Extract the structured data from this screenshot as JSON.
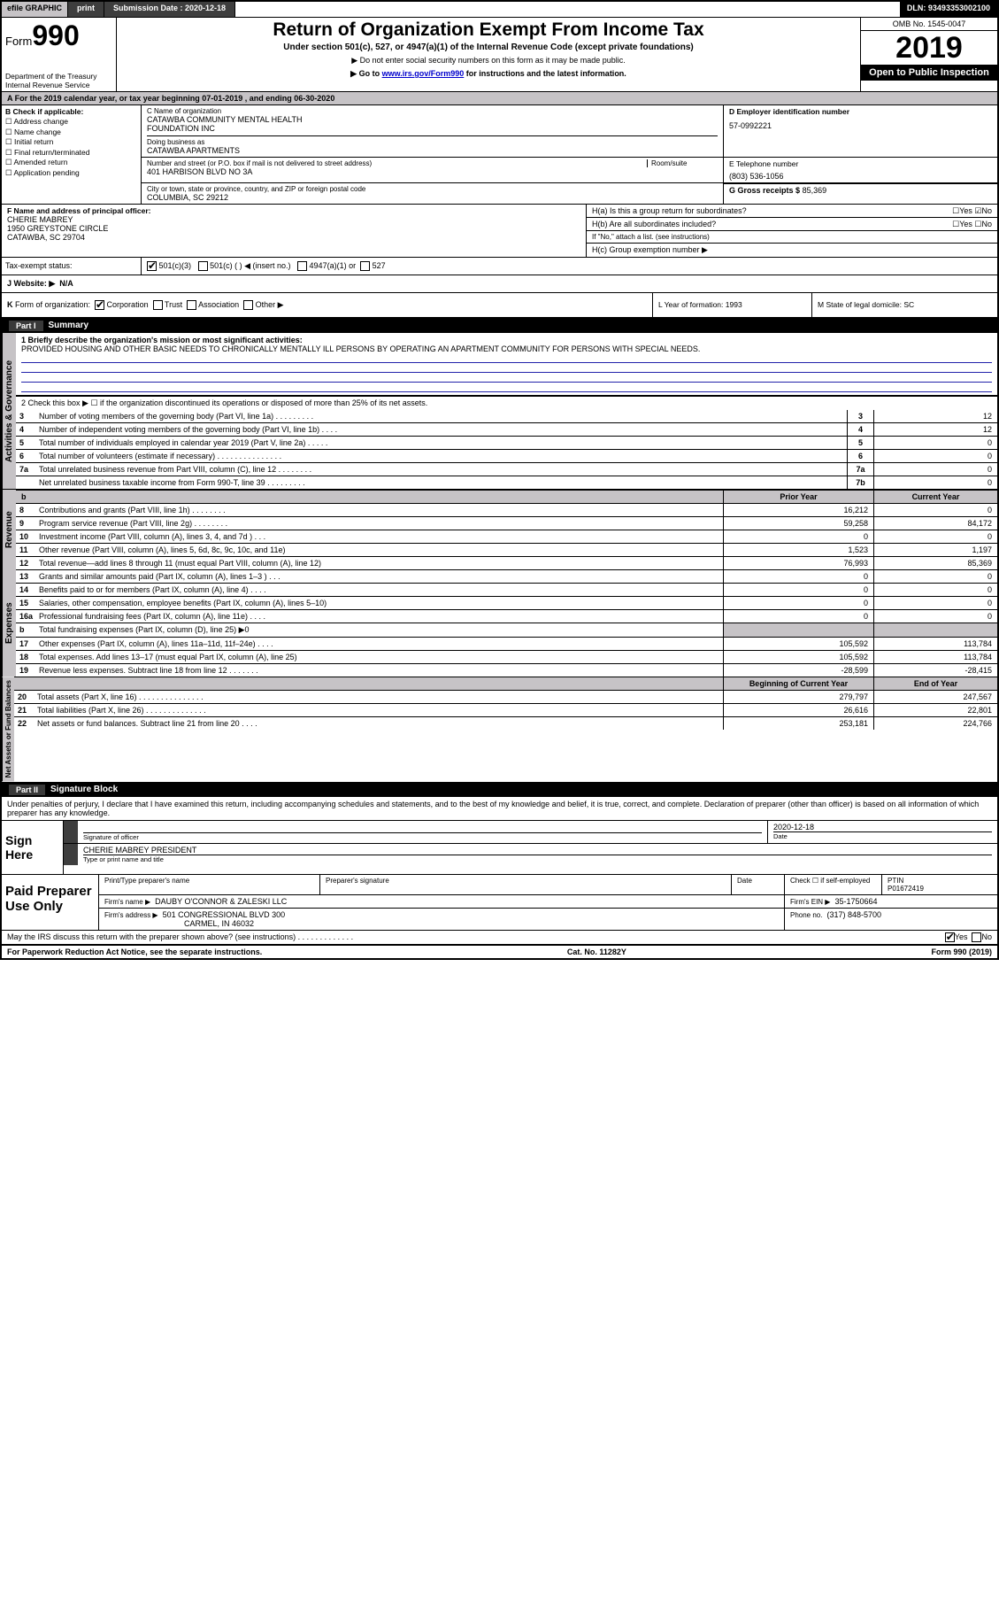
{
  "topbar": {
    "efile": "efile GRAPHIC",
    "print": "print",
    "sub_label": "Submission Date : 2020-12-18",
    "dln": "DLN: 93493353002100"
  },
  "header": {
    "form_prefix": "Form",
    "form_num": "990",
    "dept": "Department of the Treasury",
    "irs": "Internal Revenue Service",
    "title": "Return of Organization Exempt From Income Tax",
    "sub1": "Under section 501(c), 527, or 4947(a)(1) of the Internal Revenue Code (except private foundations)",
    "sub2": "▶ Do not enter social security numbers on this form as it may be made public.",
    "sub3_pre": "▶ Go to ",
    "sub3_link": "www.irs.gov/Form990",
    "sub3_post": " for instructions and the latest information.",
    "omb": "OMB No. 1545-0047",
    "year": "2019",
    "open": "Open to Public Inspection"
  },
  "period": {
    "a": "A For the 2019 calendar year, or tax year beginning 07-01-2019    , and ending 06-30-2020"
  },
  "boxB": {
    "hdr": "B Check if applicable:",
    "items": [
      "Address change",
      "Name change",
      "Initial return",
      "Final return/terminated",
      "Amended return",
      "Application pending"
    ]
  },
  "boxC": {
    "label": "C Name of organization",
    "name1": "CATAWBA COMMUNITY MENTAL HEALTH",
    "name2": "FOUNDATION INC",
    "dba_label": "Doing business as",
    "dba": "CATAWBA APARTMENTS",
    "addr_label": "Number and street (or P.O. box if mail is not delivered to street address)",
    "room_label": "Room/suite",
    "addr": "401 HARBISON BLVD NO 3A",
    "city_label": "City or town, state or province, country, and ZIP or foreign postal code",
    "city": "COLUMBIA, SC  29212"
  },
  "boxD": {
    "label": "D Employer identification number",
    "ein": "57-0992221"
  },
  "boxE": {
    "label": "E Telephone number",
    "phone": "(803) 536-1056"
  },
  "boxG": {
    "label": "G Gross receipts $",
    "val": "85,369"
  },
  "boxF": {
    "label": "F  Name and address of principal officer:",
    "l1": "CHERIE MABREY",
    "l2": "1950 GREYSTONE CIRCLE",
    "l3": "CATAWBA, SC  29704"
  },
  "boxH": {
    "ha": "H(a)  Is this a group return for subordinates?",
    "ha_yn": " Yes   No",
    "hb": "H(b)  Are all subordinates included?",
    "hb_yn": " Yes   No",
    "hb_note": "If \"No,\" attach a list. (see instructions)",
    "hc": "H(c)  Group exemption number ▶"
  },
  "taxrow": {
    "left": "Tax-exempt status:",
    "c1": "501(c)(3)",
    "c2": "501(c) (  ) ◀ (insert no.)",
    "c3": "4947(a)(1) or",
    "c4": "527"
  },
  "website": {
    "label": "J   Website: ▶",
    "val": "N/A"
  },
  "klm": {
    "k": "K Form of organization:     Corporation     Trust     Association     Other ▶",
    "l": "L Year of formation: 1993",
    "m": "M State of legal domicile: SC"
  },
  "partI": {
    "tab": "Part I",
    "title": "Summary",
    "q1_label": "1  Briefly describe the organization's mission or most significant activities:",
    "q1_text": "PROVIDED HOUSING AND OTHER BASIC NEEDS TO CHRONICALLY MENTALLY ILL PERSONS BY OPERATING AN APARTMENT COMMUNITY FOR PERSONS WITH SPECIAL NEEDS.",
    "q2": "2    Check this box ▶ ☐  if the organization discontinued its operations or disposed of more than 25% of its net assets.",
    "side_ag": "Activities & Governance",
    "side_rev": "Revenue",
    "side_exp": "Expenses",
    "side_na": "Net Assets or Fund Balances",
    "rows_top": [
      {
        "n": "3",
        "label": "Number of voting members of the governing body (Part VI, line 1a)  .  .  .  .  .  .  .  .  .",
        "box": "3",
        "val": "12"
      },
      {
        "n": "4",
        "label": "Number of independent voting members of the governing body (Part VI, line 1b)  .  .  .  .",
        "box": "4",
        "val": "12"
      },
      {
        "n": "5",
        "label": "Total number of individuals employed in calendar year 2019 (Part V, line 2a)  .  .  .  .  .",
        "box": "5",
        "val": "0"
      },
      {
        "n": "6",
        "label": "Total number of volunteers (estimate if necessary)   .  .  .  .  .  .  .  .  .  .  .  .  .  .  .",
        "box": "6",
        "val": "0"
      },
      {
        "n": "7a",
        "label": "Total unrelated business revenue from Part VIII, column (C), line 12  .  .  .  .  .  .  .  .",
        "box": "7a",
        "val": "0"
      },
      {
        "n": "",
        "label": "Net unrelated business taxable income from Form 990-T, line 39  .   .  .  .  .  .  .  .  .",
        "box": "7b",
        "val": "0"
      }
    ],
    "col_hdr_prior": "Prior Year",
    "col_hdr_curr": "Current Year",
    "rows_rev": [
      {
        "n": "8",
        "label": "Contributions and grants (Part VIII, line 1h)  .  .  .  .  .  .  .  .",
        "py": "16,212",
        "cy": "0"
      },
      {
        "n": "9",
        "label": "Program service revenue (Part VIII, line 2g)  .  .  .  .  .  .  .  .",
        "py": "59,258",
        "cy": "84,172"
      },
      {
        "n": "10",
        "label": "Investment income (Part VIII, column (A), lines 3, 4, and 7d )  .  .  .",
        "py": "0",
        "cy": "0"
      },
      {
        "n": "11",
        "label": "Other revenue (Part VIII, column (A), lines 5, 6d, 8c, 9c, 10c, and 11e)",
        "py": "1,523",
        "cy": "1,197"
      },
      {
        "n": "12",
        "label": "Total revenue—add lines 8 through 11 (must equal Part VIII, column (A), line 12)",
        "py": "76,993",
        "cy": "85,369"
      }
    ],
    "rows_exp": [
      {
        "n": "13",
        "label": "Grants and similar amounts paid (Part IX, column (A), lines 1–3 )  .  .  .",
        "py": "0",
        "cy": "0"
      },
      {
        "n": "14",
        "label": "Benefits paid to or for members (Part IX, column (A), line 4)  .  .  .  .",
        "py": "0",
        "cy": "0"
      },
      {
        "n": "15",
        "label": "Salaries, other compensation, employee benefits (Part IX, column (A), lines 5–10)",
        "py": "0",
        "cy": "0"
      },
      {
        "n": "16a",
        "label": "Professional fundraising fees (Part IX, column (A), line 11e)  .  .  .  .",
        "py": "0",
        "cy": "0"
      },
      {
        "n": "b",
        "label": "Total fundraising expenses (Part IX, column (D), line 25) ▶0",
        "py": "",
        "cy": "",
        "shade": true
      },
      {
        "n": "17",
        "label": "Other expenses (Part IX, column (A), lines 11a–11d, 11f–24e)  .  .  .  .",
        "py": "105,592",
        "cy": "113,784"
      },
      {
        "n": "18",
        "label": "Total expenses. Add lines 13–17 (must equal Part IX, column (A), line 25)",
        "py": "105,592",
        "cy": "113,784"
      },
      {
        "n": "19",
        "label": "Revenue less expenses. Subtract line 18 from line 12  .  .  .  .  .  .  .",
        "py": "-28,599",
        "cy": "-28,415"
      }
    ],
    "col_hdr_beg": "Beginning of Current Year",
    "col_hdr_end": "End of Year",
    "rows_na": [
      {
        "n": "20",
        "label": "Total assets (Part X, line 16)  .  .  .  .  .  .  .  .  .  .  .  .  .  .  .",
        "py": "279,797",
        "cy": "247,567"
      },
      {
        "n": "21",
        "label": "Total liabilities (Part X, line 26)  .  .  .  .  .  .  .  .  .  .  .  .  .  .",
        "py": "26,616",
        "cy": "22,801"
      },
      {
        "n": "22",
        "label": "Net assets or fund balances. Subtract line 21 from line 20  .  .  .  .",
        "py": "253,181",
        "cy": "224,766"
      }
    ]
  },
  "partII": {
    "tab": "Part II",
    "title": "Signature Block",
    "decl": "Under penalties of perjury, I declare that I have examined this return, including accompanying schedules and statements, and to the best of my knowledge and belief, it is true, correct, and complete. Declaration of preparer (other than officer) is based on all information of which preparer has any knowledge.",
    "sign_here": "Sign Here",
    "sig_off": "Signature of officer",
    "sig_date_val": "2020-12-18",
    "sig_date_lbl": "Date",
    "sig_name_val": "CHERIE MABREY PRESIDENT",
    "sig_name_lbl": "Type or print name and title",
    "paid": "Paid Preparer Use Only",
    "pr_h1": "Print/Type preparer's name",
    "pr_h2": "Preparer's signature",
    "pr_h3": "Date",
    "pr_h4": "Check ☐ if self-employed",
    "pr_h5_lbl": "PTIN",
    "pr_h5_val": "P01672419",
    "firm_name_lbl": "Firm's name    ▶",
    "firm_name": "DAUBY O'CONNOR & ZALESKI LLC",
    "firm_ein_lbl": "Firm's EIN ▶",
    "firm_ein": "35-1750664",
    "firm_addr_lbl": "Firm's address ▶",
    "firm_addr1": "501 CONGRESSIONAL BLVD 300",
    "firm_addr2": "CARMEL, IN  46032",
    "firm_phone_lbl": "Phone no.",
    "firm_phone": "(317) 848-5700",
    "discuss": "May the IRS discuss this return with the preparer shown above? (see instructions)   .  .  .  .  .  .  .  .  .  .  .  .  .",
    "discuss_yn": " Yes   No"
  },
  "footer": {
    "left": "For Paperwork Reduction Act Notice, see the separate instructions.",
    "mid": "Cat. No. 11282Y",
    "right": "Form 990 (2019)"
  }
}
